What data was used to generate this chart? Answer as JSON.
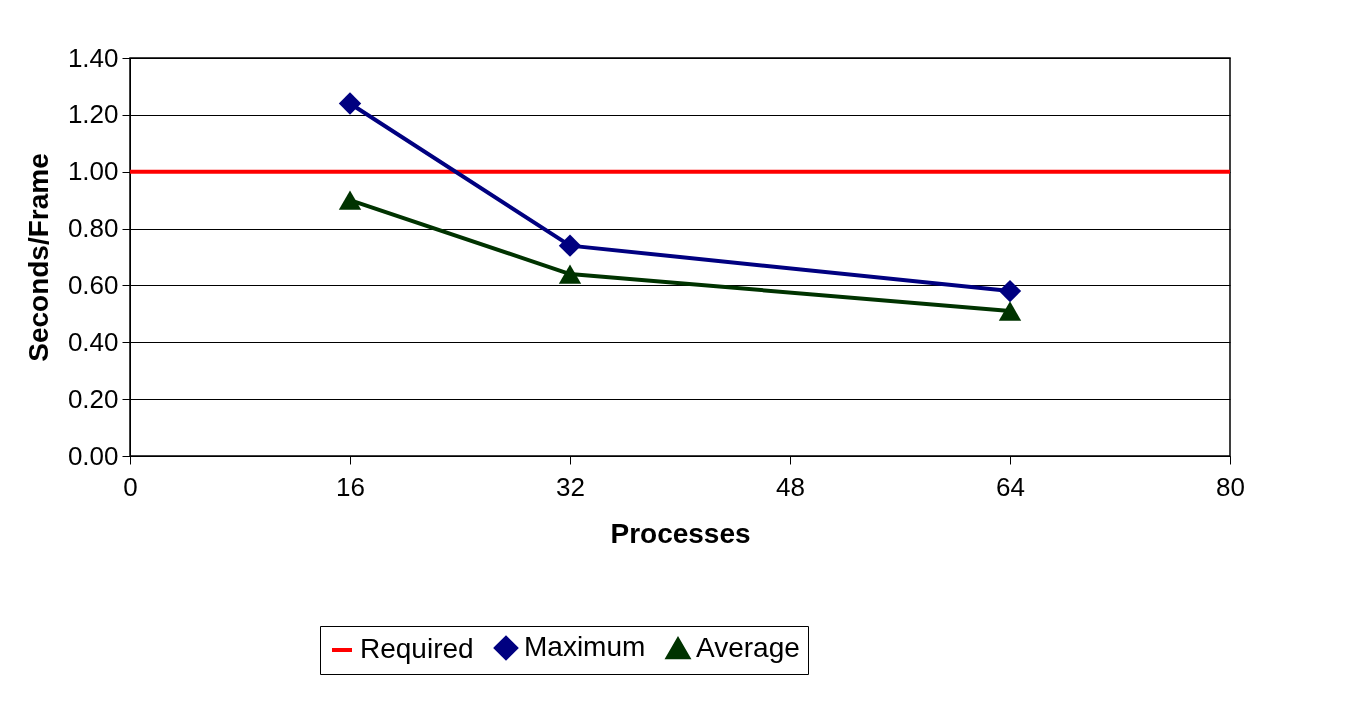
{
  "chart_data": {
    "type": "line",
    "xlabel": "Processes",
    "ylabel": "Seconds/Frame",
    "x": [
      16,
      32,
      64
    ],
    "series": [
      {
        "name": "Required",
        "color": "#ff0000",
        "marker": "none",
        "x": [
          0,
          80
        ],
        "values": [
          1.0,
          1.0
        ]
      },
      {
        "name": "Maximum",
        "color": "#000080",
        "marker": "diamond",
        "values": [
          1.24,
          0.74,
          0.58
        ]
      },
      {
        "name": "Average",
        "color": "#003300",
        "marker": "triangle",
        "values": [
          0.9,
          0.64,
          0.51
        ]
      }
    ],
    "xlim": [
      0,
      80
    ],
    "xticks": [
      0,
      16,
      32,
      48,
      64,
      80
    ],
    "ylim": [
      0,
      1.4
    ],
    "yticks": [
      {
        "value": 0,
        "label": "0.00"
      },
      {
        "value": 0.2,
        "label": "0.20"
      },
      {
        "value": 0.4,
        "label": "0.40"
      },
      {
        "value": 0.6,
        "label": "0.60"
      },
      {
        "value": 0.8,
        "label": "0.80"
      },
      {
        "value": 1.0,
        "label": "1.00"
      },
      {
        "value": 1.2,
        "label": "1.20"
      },
      {
        "value": 1.4,
        "label": "1.40"
      }
    ],
    "grid": "y",
    "legend": "bottom"
  }
}
